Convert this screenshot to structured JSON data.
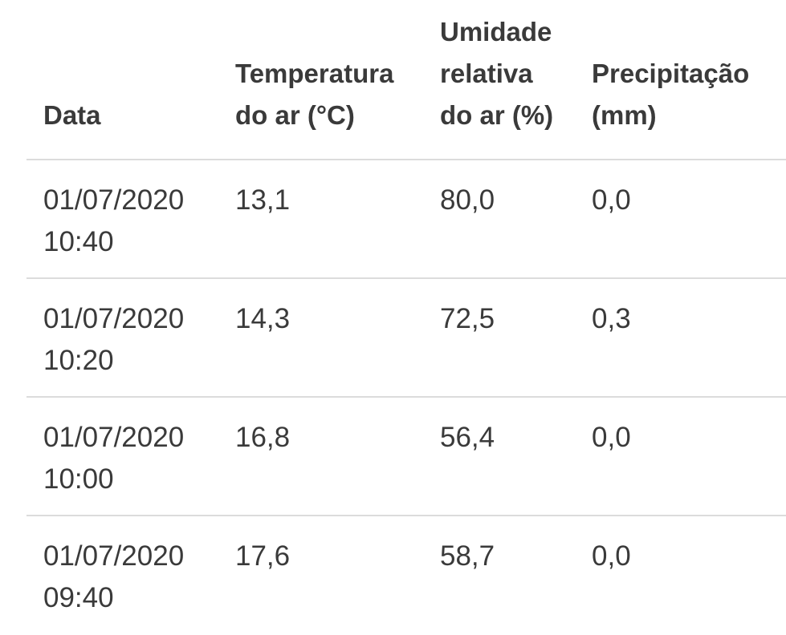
{
  "table": {
    "headers": [
      "Data",
      "Temperatura\ndo ar (°C)",
      "Umidade\nrelativa\ndo ar (%)",
      "Precipitação\n(mm)"
    ],
    "rows": [
      {
        "date": "01/07/2020\n10:40",
        "temperature": "13,1",
        "humidity": "80,0",
        "precipitation": "0,0"
      },
      {
        "date": "01/07/2020\n10:20",
        "temperature": "14,3",
        "humidity": "72,5",
        "precipitation": "0,3"
      },
      {
        "date": "01/07/2020\n10:00",
        "temperature": "16,8",
        "humidity": "56,4",
        "precipitation": "0,0"
      },
      {
        "date": "01/07/2020\n09:40",
        "temperature": "17,6",
        "humidity": "58,7",
        "precipitation": "0,0"
      }
    ]
  },
  "colors": {
    "text": "#3a3a3a",
    "divider": "#dcdcdc",
    "background": "#ffffff"
  }
}
